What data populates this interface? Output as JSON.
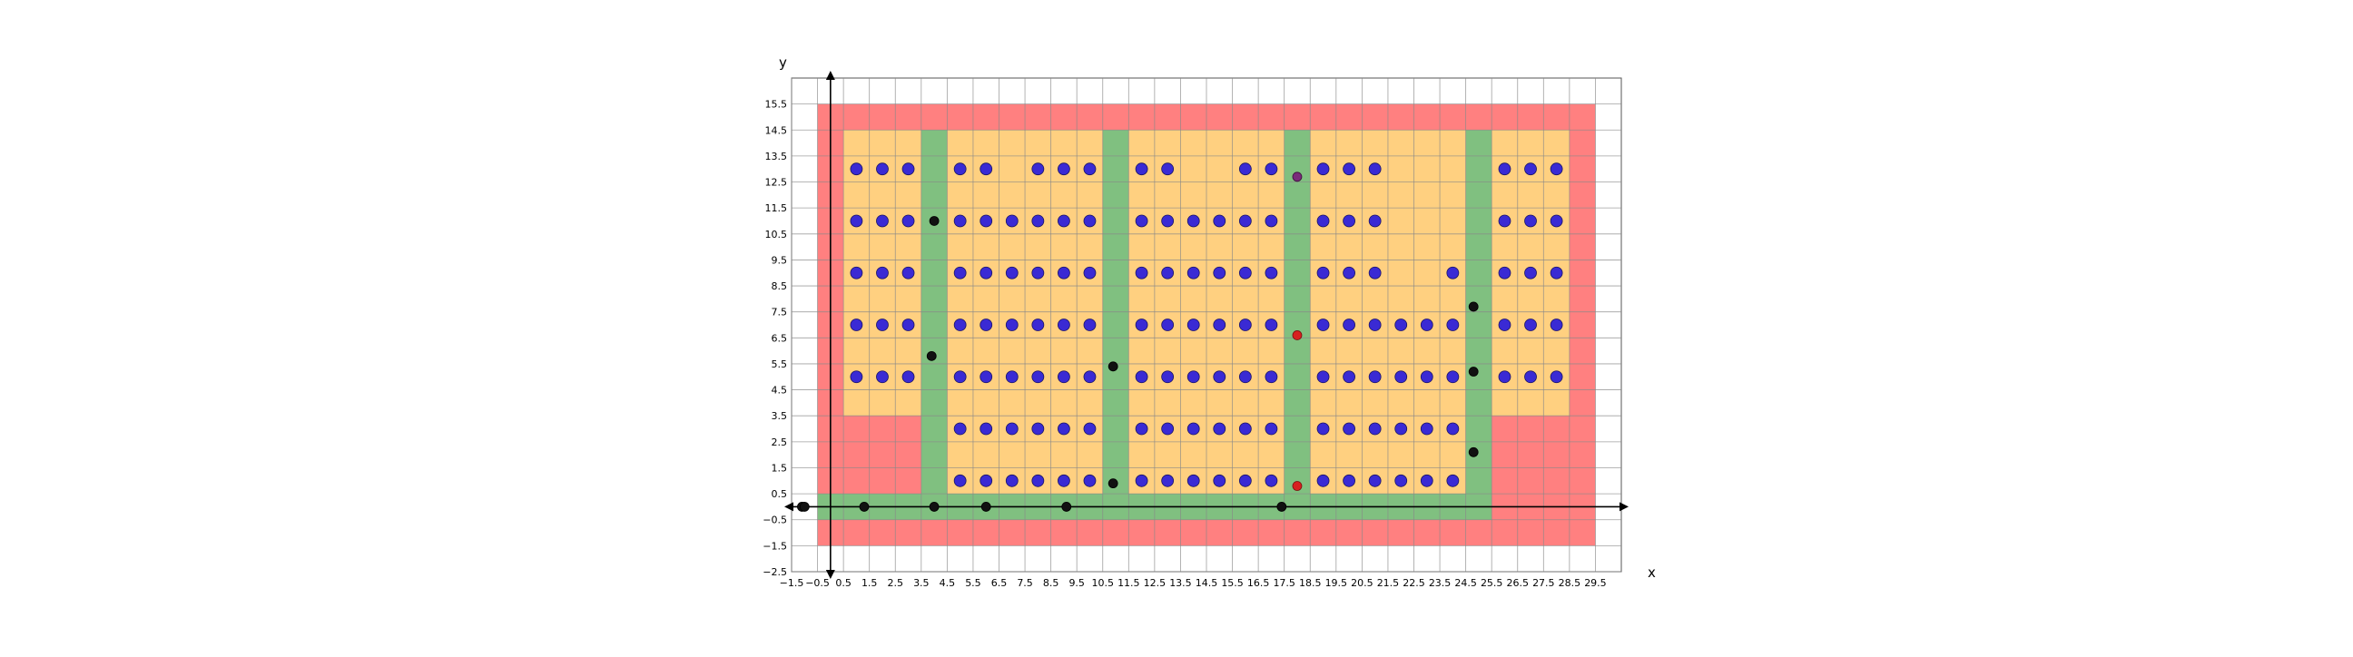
{
  "chart_data": {
    "type": "scatter",
    "xlabel": "x",
    "ylabel": "y",
    "xlim": [
      -1.5,
      30.5
    ],
    "ylim": [
      -2.5,
      16.5
    ],
    "xticks": [
      "-1.5",
      "-0.5",
      "0.5",
      "1.5",
      "2.5",
      "3.5",
      "4.5",
      "5.5",
      "6.5",
      "7.5",
      "8.5",
      "9.5",
      "10.5",
      "11.5",
      "12.5",
      "13.5",
      "14.5",
      "15.5",
      "16.5",
      "17.5",
      "18.5",
      "19.5",
      "20.5",
      "21.5",
      "22.5",
      "23.5",
      "24.5",
      "25.5",
      "26.5",
      "27.5",
      "28.5",
      "29.5"
    ],
    "yticks": [
      "-2.5",
      "-1.5",
      "-0.5",
      "0.5",
      "1.5",
      "2.5",
      "3.5",
      "4.5",
      "5.5",
      "6.5",
      "7.5",
      "8.5",
      "9.5",
      "10.5",
      "11.5",
      "12.5",
      "13.5",
      "14.5",
      "15.5"
    ],
    "grid": true,
    "colors": {
      "red_zone": "#ff8080",
      "orange_zone": "#ffd080",
      "green_zone": "#80c080",
      "blue_points": "#3a2ad4",
      "black_points": "#111111",
      "red_points": "#d82020",
      "purple_points": "#7a2a7a"
    },
    "regions": [
      {
        "color": "red",
        "x": [
          -0.5,
          29.5
        ],
        "y": [
          -1.5,
          15.5
        ]
      },
      {
        "color": "orange",
        "x": [
          0.5,
          28.5
        ],
        "y": [
          3.5,
          14.5
        ]
      },
      {
        "color": "orange",
        "x": [
          3.5,
          25.5
        ],
        "y": [
          0.5,
          3.5
        ]
      },
      {
        "color": "green",
        "x": [
          -0.5,
          25.5
        ],
        "y": [
          -0.5,
          0.5
        ]
      },
      {
        "color": "green",
        "x": [
          3.5,
          4.5
        ],
        "y": [
          -0.5,
          14.5
        ]
      },
      {
        "color": "green",
        "x": [
          10.5,
          11.5
        ],
        "y": [
          -0.5,
          14.5
        ]
      },
      {
        "color": "green",
        "x": [
          17.5,
          18.5
        ],
        "y": [
          -0.5,
          14.5
        ]
      },
      {
        "color": "green",
        "x": [
          24.5,
          25.5
        ],
        "y": [
          -0.5,
          14.5
        ]
      }
    ],
    "series": [
      {
        "marker": "blue",
        "points": [
          [
            1,
            13
          ],
          [
            2,
            13
          ],
          [
            3,
            13
          ],
          [
            5,
            13
          ],
          [
            6,
            13
          ],
          [
            8,
            13
          ],
          [
            9,
            13
          ],
          [
            10,
            13
          ],
          [
            12,
            13
          ],
          [
            13,
            13
          ],
          [
            16,
            13
          ],
          [
            17,
            13
          ],
          [
            19,
            13
          ],
          [
            20,
            13
          ],
          [
            21,
            13
          ],
          [
            26,
            13
          ],
          [
            27,
            13
          ],
          [
            28,
            13
          ],
          [
            1,
            11
          ],
          [
            2,
            11
          ],
          [
            3,
            11
          ],
          [
            5,
            11
          ],
          [
            6,
            11
          ],
          [
            7,
            11
          ],
          [
            8,
            11
          ],
          [
            9,
            11
          ],
          [
            10,
            11
          ],
          [
            12,
            11
          ],
          [
            13,
            11
          ],
          [
            14,
            11
          ],
          [
            15,
            11
          ],
          [
            16,
            11
          ],
          [
            17,
            11
          ],
          [
            19,
            11
          ],
          [
            20,
            11
          ],
          [
            21,
            11
          ],
          [
            26,
            11
          ],
          [
            27,
            11
          ],
          [
            28,
            11
          ],
          [
            1,
            9
          ],
          [
            2,
            9
          ],
          [
            3,
            9
          ],
          [
            5,
            9
          ],
          [
            6,
            9
          ],
          [
            7,
            9
          ],
          [
            8,
            9
          ],
          [
            9,
            9
          ],
          [
            10,
            9
          ],
          [
            12,
            9
          ],
          [
            13,
            9
          ],
          [
            14,
            9
          ],
          [
            15,
            9
          ],
          [
            16,
            9
          ],
          [
            17,
            9
          ],
          [
            19,
            9
          ],
          [
            20,
            9
          ],
          [
            21,
            9
          ],
          [
            24,
            9
          ],
          [
            26,
            9
          ],
          [
            27,
            9
          ],
          [
            28,
            9
          ],
          [
            1,
            7
          ],
          [
            2,
            7
          ],
          [
            3,
            7
          ],
          [
            5,
            7
          ],
          [
            6,
            7
          ],
          [
            7,
            7
          ],
          [
            8,
            7
          ],
          [
            9,
            7
          ],
          [
            10,
            7
          ],
          [
            12,
            7
          ],
          [
            13,
            7
          ],
          [
            14,
            7
          ],
          [
            15,
            7
          ],
          [
            16,
            7
          ],
          [
            17,
            7
          ],
          [
            19,
            7
          ],
          [
            20,
            7
          ],
          [
            21,
            7
          ],
          [
            22,
            7
          ],
          [
            23,
            7
          ],
          [
            24,
            7
          ],
          [
            26,
            7
          ],
          [
            27,
            7
          ],
          [
            28,
            7
          ],
          [
            1,
            5
          ],
          [
            2,
            5
          ],
          [
            3,
            5
          ],
          [
            5,
            5
          ],
          [
            6,
            5
          ],
          [
            7,
            5
          ],
          [
            8,
            5
          ],
          [
            9,
            5
          ],
          [
            10,
            5
          ],
          [
            12,
            5
          ],
          [
            13,
            5
          ],
          [
            14,
            5
          ],
          [
            15,
            5
          ],
          [
            16,
            5
          ],
          [
            17,
            5
          ],
          [
            19,
            5
          ],
          [
            20,
            5
          ],
          [
            21,
            5
          ],
          [
            22,
            5
          ],
          [
            23,
            5
          ],
          [
            24,
            5
          ],
          [
            26,
            5
          ],
          [
            27,
            5
          ],
          [
            28,
            5
          ],
          [
            5,
            3
          ],
          [
            6,
            3
          ],
          [
            7,
            3
          ],
          [
            8,
            3
          ],
          [
            9,
            3
          ],
          [
            10,
            3
          ],
          [
            12,
            3
          ],
          [
            13,
            3
          ],
          [
            14,
            3
          ],
          [
            15,
            3
          ],
          [
            16,
            3
          ],
          [
            17,
            3
          ],
          [
            19,
            3
          ],
          [
            20,
            3
          ],
          [
            21,
            3
          ],
          [
            22,
            3
          ],
          [
            23,
            3
          ],
          [
            24,
            3
          ],
          [
            5,
            1
          ],
          [
            6,
            1
          ],
          [
            7,
            1
          ],
          [
            8,
            1
          ],
          [
            9,
            1
          ],
          [
            10,
            1
          ],
          [
            12,
            1
          ],
          [
            13,
            1
          ],
          [
            14,
            1
          ],
          [
            15,
            1
          ],
          [
            16,
            1
          ],
          [
            17,
            1
          ],
          [
            19,
            1
          ],
          [
            20,
            1
          ],
          [
            21,
            1
          ],
          [
            22,
            1
          ],
          [
            23,
            1
          ],
          [
            24,
            1
          ]
        ]
      },
      {
        "marker": "black",
        "points": [
          [
            -1.1,
            0
          ],
          [
            -1.0,
            0
          ],
          [
            1.3,
            0
          ],
          [
            4.0,
            0
          ],
          [
            6.0,
            0
          ],
          [
            9.1,
            0
          ],
          [
            17.4,
            0
          ],
          [
            4.0,
            11.0
          ],
          [
            3.9,
            5.8
          ],
          [
            10.9,
            5.4
          ],
          [
            10.9,
            0.9
          ],
          [
            24.8,
            7.7
          ],
          [
            24.8,
            5.2
          ],
          [
            24.8,
            2.1
          ]
        ]
      },
      {
        "marker": "red",
        "points": [
          [
            18.0,
            6.6
          ],
          [
            18.0,
            0.8
          ]
        ]
      },
      {
        "marker": "purple",
        "points": [
          [
            18.0,
            12.7
          ]
        ]
      }
    ]
  }
}
